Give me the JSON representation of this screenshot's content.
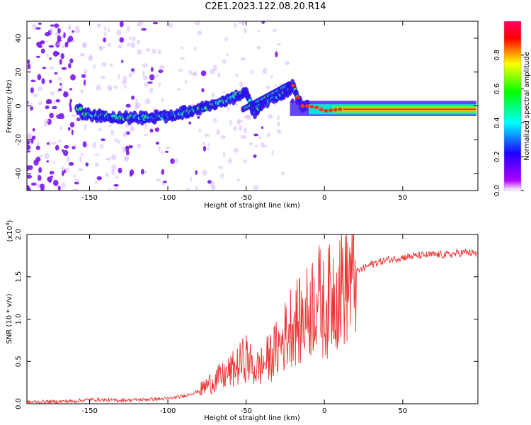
{
  "title": "C2E1.2023.122.08.20.R14",
  "chart_data": [
    {
      "type": "heatmap",
      "xlabel": "Height of straight line (km)",
      "ylabel": "Frequency (Hz)",
      "xlim": [
        -190,
        98
      ],
      "ylim": [
        -50,
        50
      ],
      "xticks": [
        -150,
        -100,
        -50,
        0,
        50
      ],
      "xtick_labels": [
        "-150",
        "-100",
        "-50",
        "0",
        "50"
      ],
      "yticks": [
        -40,
        -20,
        0,
        20,
        40
      ],
      "ytick_labels": [
        "-40",
        "-20",
        "0",
        "20",
        "40"
      ],
      "colorbar": {
        "label": "Normalized spectral amplitude",
        "range": [
          0,
          1
        ],
        "ticks": [
          0.0,
          0.2,
          0.4,
          0.6,
          0.8
        ],
        "tick_labels": [
          "0.0",
          "0.2",
          "0.4",
          "0.6",
          "0.8"
        ],
        "colors": [
          "#ffffff",
          "#b000ff",
          "#2000ff",
          "#00ffff",
          "#00ff00",
          "#ffff00",
          "#ff0000",
          "#ff0066"
        ]
      },
      "ridge": {
        "x": [
          -155,
          -140,
          -130,
          -120,
          -110,
          -100,
          -90,
          -80,
          -70,
          -60,
          -55,
          -50,
          -45,
          -40,
          -35,
          -30,
          -25,
          -20,
          -15,
          -10,
          -5,
          0,
          10,
          20,
          40,
          60,
          80,
          97
        ],
        "y": [
          -5,
          -6,
          -7,
          -7,
          -7,
          -6,
          -4,
          -2,
          1,
          4,
          7,
          8,
          -4,
          1,
          4,
          6,
          8,
          12,
          0,
          0,
          -1,
          -3,
          -2,
          -2,
          -2,
          -2,
          -2,
          -2
        ]
      }
    },
    {
      "type": "line",
      "xlabel": "Height of straight line (km)",
      "ylabel": "SNR (10 * v/v)",
      "multiplier_label": "(x10",
      "multiplier_exp": "4",
      "xlim": [
        -190,
        98
      ],
      "ylim": [
        0,
        20000
      ],
      "xticks": [
        -150,
        -100,
        -50,
        0,
        50
      ],
      "xtick_labels": [
        "-150",
        "-100",
        "-50",
        "0",
        "50"
      ],
      "yticks": [
        0,
        5000,
        10000,
        15000,
        20000
      ],
      "ytick_labels": [
        "0.0",
        "0.5",
        "1.0",
        "1.5",
        "2.0"
      ],
      "color": "#ee3333",
      "x": [
        -190,
        -160,
        -150,
        -130,
        -100,
        -90,
        -80,
        -75,
        -70,
        -65,
        -60,
        -55,
        -50,
        -45,
        -40,
        -35,
        -30,
        -25,
        -20,
        -15,
        -10,
        -5,
        0,
        5,
        10,
        15,
        20,
        25,
        30,
        40,
        50,
        60,
        70,
        80,
        90,
        97
      ],
      "y": [
        200,
        300,
        500,
        400,
        600,
        900,
        1500,
        2200,
        2800,
        3200,
        3800,
        4500,
        5500,
        4000,
        4500,
        5500,
        6500,
        8000,
        10000,
        9500,
        11000,
        13000,
        11000,
        13000,
        14000,
        14500,
        15500,
        16000,
        16500,
        17000,
        17300,
        17500,
        17600,
        17600,
        17900,
        17700
      ]
    }
  ]
}
